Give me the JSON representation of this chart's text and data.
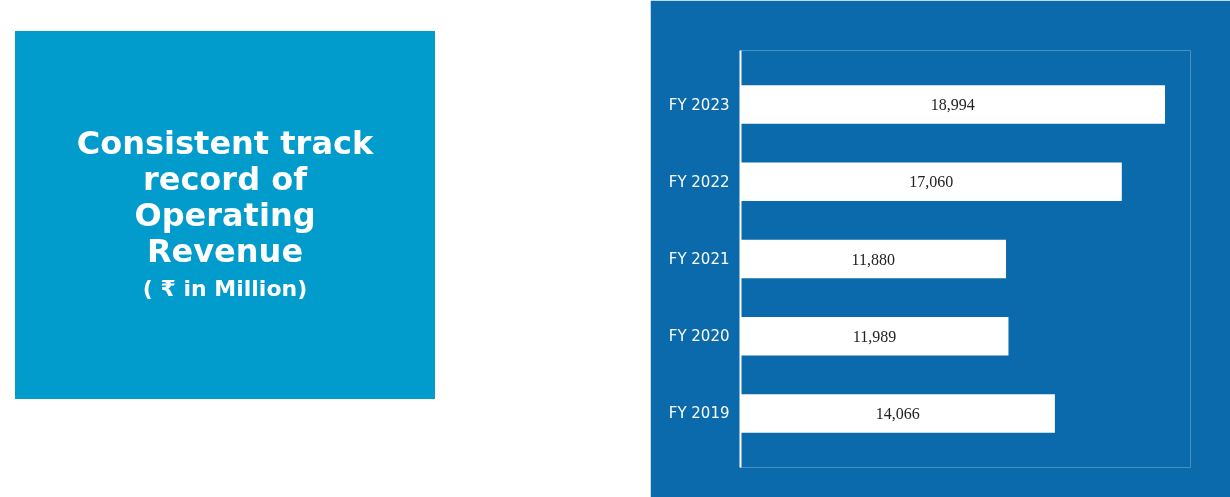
{
  "chart_data": {
    "type": "bar",
    "orientation": "horizontal",
    "title": "Consistent track record of Operating Revenue",
    "subtitle": "( ₹ in Million)",
    "categories": [
      "FY 2023",
      "FY 2022",
      "FY 2021",
      "FY 2020",
      "FY 2019"
    ],
    "values": [
      18994,
      17060,
      11880,
      11989,
      14066
    ],
    "value_labels": [
      "18,994",
      "17,060",
      "11,880",
      "11,989",
      "14,066"
    ],
    "color": "#ffffff"
  }
}
